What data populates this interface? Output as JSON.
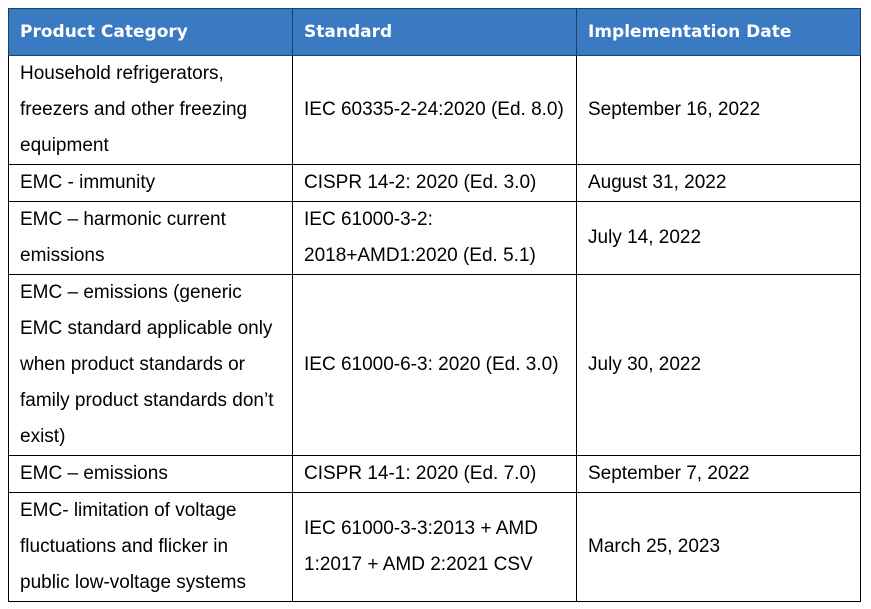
{
  "table": {
    "headers": {
      "category": "Product Category",
      "standard": "Standard",
      "date": "Implementation Date"
    },
    "colors": {
      "header_background": "#3a7ac2",
      "header_text": "#ffffff",
      "border": "#000000"
    },
    "rows": [
      {
        "category": "Household refrigerators, freezers and other freezing equipment",
        "standard": "IEC 60335-2-24:2020 (Ed. 8.0)",
        "date": "September 16, 2022"
      },
      {
        "category": "EMC - immunity",
        "standard": "CISPR 14-2: 2020 (Ed. 3.0)",
        "date": "August 31, 2022"
      },
      {
        "category": "EMC – harmonic current emissions",
        "standard": "IEC 61000-3-2: 2018+AMD1:2020 (Ed. 5.1)",
        "date": "July 14, 2022"
      },
      {
        "category": "EMC – emissions (generic EMC standard applicable only when product standards or family product standards don’t exist)",
        "standard": "IEC 61000-6-3: 2020 (Ed. 3.0)",
        "date": "July 30, 2022"
      },
      {
        "category": "EMC – emissions",
        "standard": "CISPR 14-1: 2020 (Ed. 7.0)",
        "date": "September 7, 2022"
      },
      {
        "category": "EMC- limitation of voltage fluctuations and flicker in public low-voltage systems",
        "standard": "IEC 61000-3-3:2013 + AMD 1:2017 + AMD 2:2021 CSV",
        "date": "March 25, 2023"
      }
    ]
  }
}
